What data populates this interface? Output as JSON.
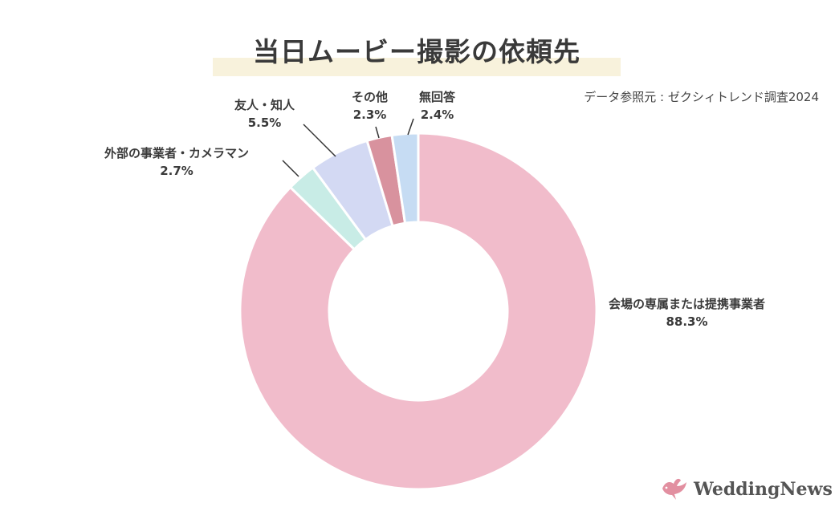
{
  "chart_data": {
    "type": "pie",
    "title": "当日ムービー撮影の依頼先",
    "source": "データ参照元 : ゼクシィトレンド調査2024",
    "slices": [
      {
        "label": "会場の専属または提携事業者",
        "value": 88.3,
        "value_label": "88.3%",
        "color": "#f1bccb"
      },
      {
        "label": "外部の事業者・カメラマン",
        "value": 2.7,
        "value_label": "2.7%",
        "color": "#c8ece6"
      },
      {
        "label": "友人・知人",
        "value": 5.5,
        "value_label": "5.5%",
        "color": "#d3d9f3"
      },
      {
        "label": "その他",
        "value": 2.3,
        "value_label": "2.3%",
        "color": "#d8929e"
      },
      {
        "label": "無回答",
        "value": 2.4,
        "value_label": "2.4%",
        "color": "#c6dcf3"
      }
    ]
  },
  "brand": {
    "name": "WeddingNews",
    "icon": "dove-icon",
    "color": "#e28fa0"
  }
}
